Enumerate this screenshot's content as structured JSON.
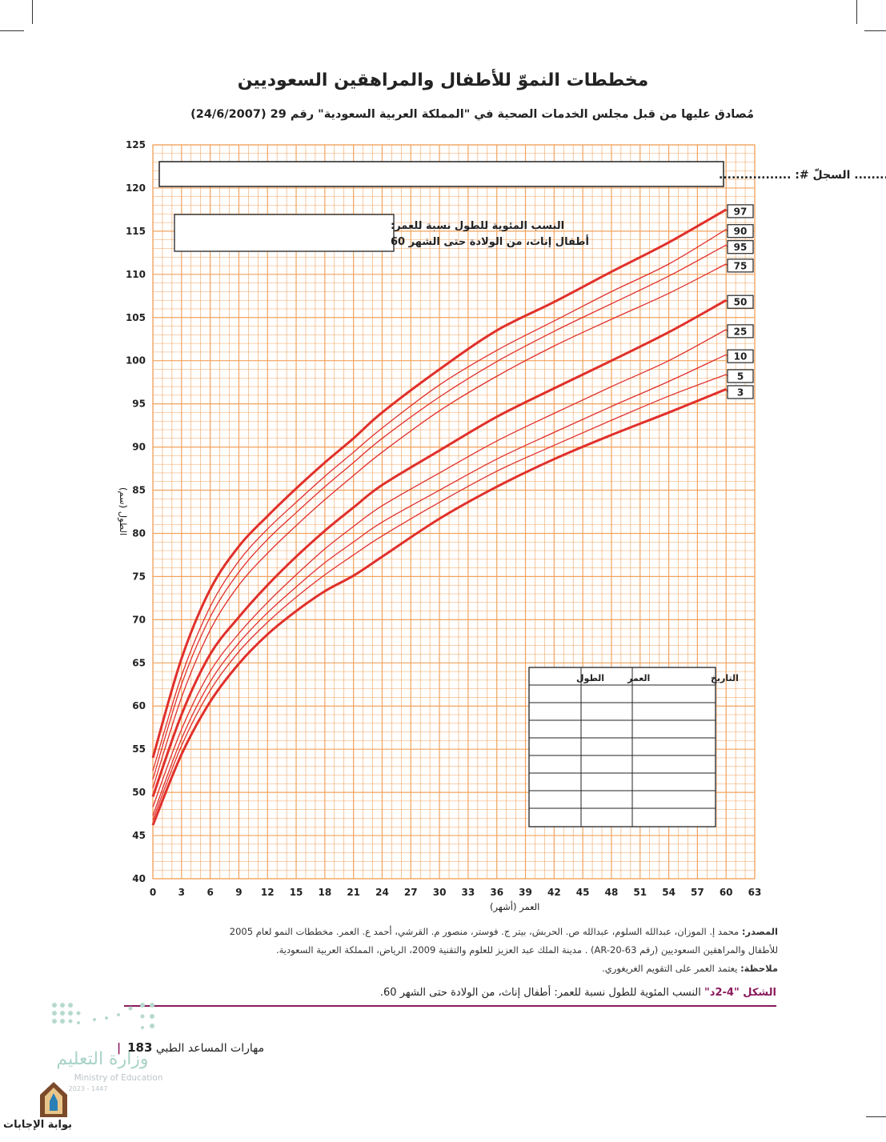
{
  "page": {
    "title": "مخططات النموّ للأطفال والمراهقين السعوديين",
    "subtitle": "مُصادق عليها من قبل مجلس الخدمات الصحية في \"المملكة العربية السعودية\" رقم 29 (24/6/2007)",
    "form_line": "الاسم: .................. تاريخ الميلاد: ................. السجلّ #: .................",
    "chart_note_line1": "النسب المئوية للطول نسبة للعمر:",
    "chart_note_line2": "أطفال إناث، من الولادة حتى الشهر 60",
    "table_headers": [
      "التاريخ",
      "العمر",
      "الطول"
    ],
    "source_line1": "محمد إ. الموزان، عبدالله السلوم، عبدالله ص. الحربش، بيتر ج. فوستر، منصور م. القرشي، أحمد ع. العمر. مخططات النمو لعام 2005",
    "source_label": "المصدر:",
    "source_line2": "للأطفال والمراهقين السعوديين (رقم AR-20-63) . مدينة الملك عبد العزيز للعلوم والتقنية 2009، الرياض، المملكة العربية السعودية.",
    "note_label": "ملاحظة:",
    "note_text": "يعتمد العمر على التقويم الغريغوري.",
    "caption_label": "الشكل \"4-2د\"",
    "caption_text": "النسب المئوية للطول نسبة للعمر: أطفال إناث، من الولادة حتى الشهر 60.",
    "footer_page": "183",
    "footer_text": "مهارات المساعد الطبي",
    "logo_text": "وزارة التعليم",
    "logo_sub": "Ministry of Education",
    "logo_year": "2023 - 1447",
    "brand": "بوابة الإجابات"
  },
  "colors": {
    "grid": "#f2a35e",
    "curve": "#e0302b",
    "caption": "#8a1a5c"
  },
  "chart_data": {
    "type": "line",
    "xlabel": "العمر (أشهر)",
    "ylabel": "الطول (سم)",
    "xlim": [
      0,
      63
    ],
    "ylim": [
      40,
      125
    ],
    "xticks": [
      0,
      3,
      6,
      9,
      12,
      15,
      18,
      21,
      24,
      27,
      30,
      33,
      36,
      39,
      42,
      45,
      48,
      51,
      54,
      57,
      60,
      63
    ],
    "yticks": [
      40,
      45,
      50,
      55,
      60,
      65,
      70,
      75,
      80,
      85,
      90,
      95,
      100,
      105,
      110,
      115,
      120,
      125
    ],
    "grid": true,
    "x": [
      0,
      3,
      6,
      9,
      12,
      15,
      18,
      21,
      24,
      30,
      36,
      42,
      48,
      54,
      60
    ],
    "series": [
      {
        "name": "97",
        "bold": true,
        "values": [
          54.0,
          65.5,
          73.5,
          78.5,
          82.0,
          85.2,
          88.2,
          91.0,
          94.0,
          99.0,
          103.5,
          106.8,
          110.3,
          113.7,
          117.5
        ]
      },
      {
        "name": "90",
        "bold": false,
        "values": [
          52.5,
          63.5,
          71.5,
          76.8,
          80.5,
          83.6,
          86.6,
          89.4,
          92.2,
          97.2,
          101.2,
          104.6,
          108.0,
          111.2,
          115.2
        ]
      },
      {
        "name": "95",
        "bold": false,
        "values": [
          51.5,
          62.5,
          70.3,
          75.5,
          79.3,
          82.4,
          85.4,
          88.2,
          91.0,
          95.8,
          99.9,
          103.4,
          106.6,
          109.8,
          113.4
        ]
      },
      {
        "name": "75",
        "bold": false,
        "values": [
          50.5,
          61.0,
          68.8,
          74.0,
          77.7,
          80.9,
          83.9,
          86.7,
          89.4,
          94.2,
          98.2,
          101.7,
          104.8,
          107.8,
          111.2
        ]
      },
      {
        "name": "50",
        "bold": true,
        "values": [
          49.5,
          59.0,
          66.0,
          70.3,
          74.0,
          77.3,
          80.3,
          83.0,
          85.6,
          89.6,
          93.5,
          96.8,
          100.0,
          103.3,
          107.0
        ]
      },
      {
        "name": "25",
        "bold": false,
        "values": [
          48.3,
          57.3,
          64.0,
          68.4,
          72.0,
          75.2,
          78.2,
          80.8,
          83.2,
          87.0,
          90.7,
          93.9,
          97.0,
          100.0,
          103.6
        ]
      },
      {
        "name": "10",
        "bold": false,
        "values": [
          47.3,
          56.2,
          62.8,
          67.3,
          70.8,
          73.8,
          76.6,
          79.0,
          81.3,
          85.0,
          88.6,
          91.7,
          94.7,
          97.6,
          100.7
        ]
      },
      {
        "name": "5",
        "bold": false,
        "values": [
          46.8,
          55.4,
          61.8,
          66.3,
          69.7,
          72.6,
          75.2,
          77.5,
          79.7,
          83.6,
          87.2,
          90.2,
          93.1,
          95.9,
          98.4
        ]
      },
      {
        "name": "3",
        "bold": true,
        "values": [
          46.2,
          54.4,
          60.5,
          64.9,
          68.3,
          71.0,
          73.3,
          75.1,
          77.3,
          81.7,
          85.4,
          88.6,
          91.4,
          94.0,
          96.7
        ]
      }
    ]
  }
}
